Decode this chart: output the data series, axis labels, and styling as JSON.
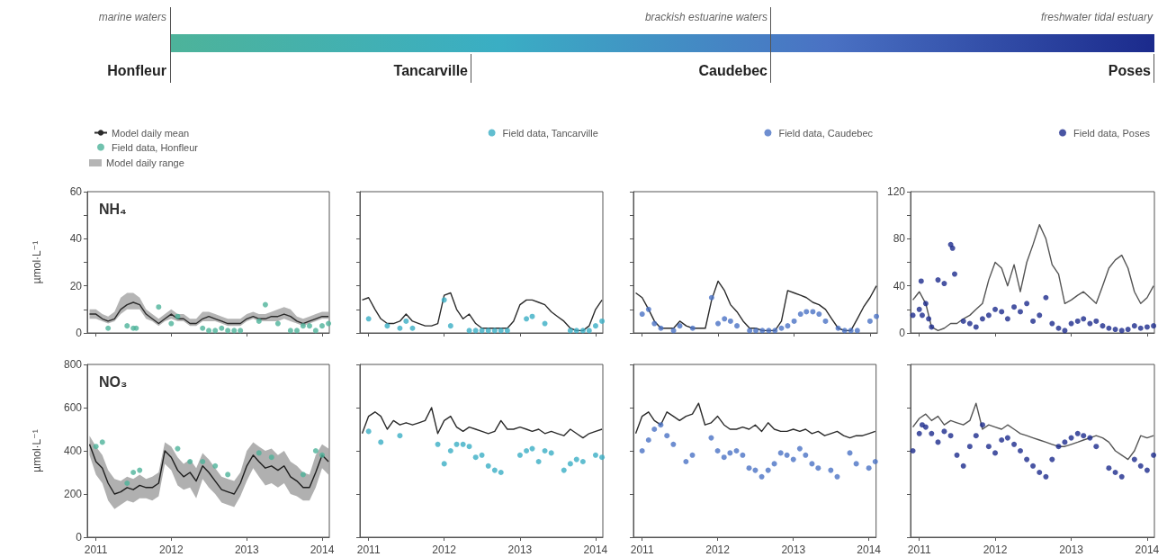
{
  "chart_data": [
    {
      "type": "other",
      "annotations": [
        "marine waters",
        "brackish estuarine waters",
        "freshwater tidal estuary",
        "Honfleur",
        "Tancarville",
        "Caudebec",
        "Poses"
      ]
    },
    {
      "type": "line",
      "title": "NH₄",
      "annotations": [
        "Model daily range"
      ],
      "ylabel": "µmol·L⁻¹",
      "legend": "top left",
      "tick_labels": "y",
      "marker": "circle",
      "line_style": "solid",
      "grid": false,
      "x": [
        "2010-12",
        "2011-01",
        "2011-02",
        "2011-03",
        "2011-04",
        "2011-05",
        "2011-06",
        "2011-07",
        "2011-08",
        "2011-09",
        "2011-10",
        "2011-11",
        "2011-12",
        "2012-01",
        "2012-02",
        "2012-03",
        "2012-04",
        "2012-05",
        "2012-06",
        "2012-07",
        "2012-08",
        "2012-09",
        "2012-10",
        "2012-11",
        "2012-12",
        "2013-01",
        "2013-02",
        "2013-03",
        "2013-04",
        "2013-05",
        "2013-06",
        "2013-07",
        "2013-08",
        "2013-09",
        "2013-10",
        "2013-11",
        "2013-12",
        "2014-01",
        "2014-02"
      ],
      "xlim": [
        "2010-11-20",
        "2014-02-05"
      ],
      "xticks": [
        "2011",
        "2012",
        "2013",
        "2014"
      ],
      "ylim": [
        0,
        60
      ],
      "yticks": [
        0,
        {
          "value": 10,
          "label": null
        },
        20,
        {
          "value": 30,
          "label": null
        },
        40,
        {
          "value": 50,
          "label": null
        },
        60
      ],
      "series": [
        {
          "name": "Model daily mean",
          "type": "line",
          "marker": "none",
          "color": "#2b2b2b",
          "values": [
            8,
            8,
            6,
            5,
            6,
            10,
            12,
            13,
            12,
            8,
            6,
            4,
            6,
            8,
            6,
            6,
            4,
            4,
            6,
            7,
            6,
            5,
            4,
            4,
            4,
            6,
            7,
            6,
            6,
            7,
            7,
            8,
            7,
            5,
            4,
            5,
            6,
            7,
            7
          ],
          "upper": [
            10,
            10,
            8,
            7,
            9,
            15,
            17,
            17,
            15,
            10,
            8,
            6,
            8,
            10,
            8,
            8,
            6,
            6,
            9,
            9,
            8,
            7,
            6,
            6,
            6,
            8,
            9,
            8,
            8,
            9,
            10,
            11,
            10,
            7,
            6,
            7,
            8,
            9,
            9
          ],
          "lower": [
            6,
            6,
            5,
            4,
            5,
            8,
            10,
            10,
            10,
            6,
            5,
            3,
            5,
            6,
            5,
            5,
            3,
            3,
            5,
            5,
            5,
            4,
            3,
            3,
            3,
            5,
            6,
            5,
            5,
            5,
            5,
            6,
            5,
            4,
            3,
            4,
            5,
            6,
            6
          ]
        },
        {
          "name": "Field data, Honfleur",
          "type": "scatter",
          "color": "#4db39a",
          "x": [
            "2011-03",
            "2011-06",
            "2011-07",
            "2011-07-15",
            "2011-11",
            "2012-01",
            "2012-02",
            "2012-06",
            "2012-07",
            "2012-08",
            "2012-09",
            "2012-10",
            "2012-11",
            "2012-12",
            "2013-03",
            "2013-04",
            "2013-06",
            "2013-08",
            "2013-09",
            "2013-10",
            "2013-11",
            "2013-12",
            "2014-01",
            "2014-02"
          ],
          "values": [
            2,
            3,
            2,
            2,
            11,
            4,
            7,
            2,
            1,
            1,
            2,
            1,
            1,
            1,
            5,
            12,
            4,
            1,
            1,
            3,
            3,
            1,
            3,
            4
          ]
        }
      ]
    },
    {
      "type": "line",
      "legend": "top right",
      "tick_labels": false,
      "marker": "circle",
      "line_style": "solid",
      "grid": false,
      "x": [
        "2010-12",
        "2011-01",
        "2011-02",
        "2011-03",
        "2011-04",
        "2011-05",
        "2011-06",
        "2011-07",
        "2011-08",
        "2011-09",
        "2011-10",
        "2011-11",
        "2011-12",
        "2012-01",
        "2012-02",
        "2012-03",
        "2012-04",
        "2012-05",
        "2012-06",
        "2012-07",
        "2012-08",
        "2012-09",
        "2012-10",
        "2012-11",
        "2012-12",
        "2013-01",
        "2013-02",
        "2013-03",
        "2013-04",
        "2013-05",
        "2013-06",
        "2013-07",
        "2013-08",
        "2013-09",
        "2013-10",
        "2013-11",
        "2013-12",
        "2014-01",
        "2014-02"
      ],
      "xlim": [
        "2010-11-20",
        "2014-02-05"
      ],
      "xticks": [
        "2011",
        "2012",
        "2013",
        "2014"
      ],
      "ylim": [
        0,
        60
      ],
      "yticks": [
        0,
        {
          "value": 10,
          "label": null
        },
        20,
        {
          "value": 30,
          "label": null
        },
        40,
        {
          "value": 50,
          "label": null
        },
        60
      ],
      "series": [
        {
          "type": "line",
          "marker": "none",
          "color": "#2b2b2b",
          "values": [
            14,
            15,
            10,
            6,
            4,
            4,
            5,
            8,
            5,
            4,
            3,
            3,
            4,
            16,
            17,
            10,
            6,
            8,
            4,
            2,
            2,
            2,
            2,
            2,
            5,
            12,
            14,
            14,
            13,
            12,
            9,
            7,
            5,
            2,
            1,
            1,
            3,
            10,
            14
          ]
        },
        {
          "name": "Field data, Tancarville",
          "type": "scatter",
          "color": "#3aaec4",
          "x": [
            "2011-01",
            "2011-04",
            "2011-06",
            "2011-07",
            "2011-08",
            "2012-01",
            "2012-02",
            "2012-05",
            "2012-06",
            "2012-07",
            "2012-08",
            "2012-09",
            "2012-10",
            "2012-11",
            "2013-02",
            "2013-03",
            "2013-05",
            "2013-09",
            "2013-10",
            "2013-11",
            "2013-12",
            "2014-01",
            "2014-02"
          ],
          "values": [
            6,
            3,
            2,
            5,
            2,
            14,
            3,
            1,
            1,
            1,
            1,
            1,
            1,
            1,
            6,
            7,
            4,
            1,
            1,
            1,
            1,
            3,
            5
          ]
        }
      ]
    },
    {
      "type": "line",
      "legend": "top right",
      "tick_labels": false,
      "marker": "circle",
      "line_style": "solid",
      "grid": false,
      "x": [
        "2010-12",
        "2011-01",
        "2011-02",
        "2011-03",
        "2011-04",
        "2011-05",
        "2011-06",
        "2011-07",
        "2011-08",
        "2011-09",
        "2011-10",
        "2011-11",
        "2011-12",
        "2012-01",
        "2012-02",
        "2012-03",
        "2012-04",
        "2012-05",
        "2012-06",
        "2012-07",
        "2012-08",
        "2012-09",
        "2012-10",
        "2012-11",
        "2012-12",
        "2013-01",
        "2013-02",
        "2013-03",
        "2013-04",
        "2013-05",
        "2013-06",
        "2013-07",
        "2013-08",
        "2013-09",
        "2013-10",
        "2013-11",
        "2013-12",
        "2014-01",
        "2014-02"
      ],
      "xlim": [
        "2010-11-20",
        "2014-02-05"
      ],
      "xticks": [
        "2011",
        "2012",
        "2013",
        "2014"
      ],
      "ylim": [
        0,
        60
      ],
      "yticks": [
        0,
        {
          "value": 10,
          "label": null
        },
        20,
        {
          "value": 30,
          "label": null
        },
        40,
        {
          "value": 50,
          "label": null
        },
        60
      ],
      "series": [
        {
          "type": "line",
          "marker": "none",
          "color": "#2b2b2b",
          "values": [
            17,
            15,
            10,
            5,
            2,
            2,
            2,
            5,
            3,
            2,
            2,
            2,
            14,
            22,
            18,
            12,
            9,
            5,
            2,
            2,
            1,
            1,
            1,
            5,
            18,
            17,
            16,
            15,
            13,
            12,
            10,
            6,
            2,
            1,
            1,
            6,
            11,
            15,
            20
          ]
        },
        {
          "name": "Field data, Caudebec",
          "type": "scatter",
          "color": "#4a72c4",
          "x": [
            "2011-01",
            "2011-02",
            "2011-03",
            "2011-04",
            "2011-06",
            "2011-07",
            "2011-09",
            "2011-12",
            "2012-01",
            "2012-02",
            "2012-03",
            "2012-04",
            "2012-06",
            "2012-07",
            "2012-08",
            "2012-09",
            "2012-10",
            "2012-11",
            "2012-12",
            "2013-01",
            "2013-02",
            "2013-03",
            "2013-04",
            "2013-05",
            "2013-06",
            "2013-08",
            "2013-09",
            "2013-10",
            "2013-11",
            "2014-01",
            "2014-02"
          ],
          "values": [
            8,
            10,
            4,
            2,
            1,
            3,
            2,
            15,
            4,
            6,
            5,
            3,
            1,
            1,
            1,
            1,
            1,
            2,
            3,
            5,
            8,
            9,
            9,
            8,
            5,
            2,
            1,
            1,
            1,
            5,
            7
          ]
        }
      ]
    },
    {
      "type": "line",
      "legend": "top right",
      "tick_labels": "y",
      "marker": "circle",
      "line_style": "solid",
      "grid": false,
      "x": [
        "2010-12",
        "2011-01",
        "2011-02",
        "2011-03",
        "2011-04",
        "2011-05",
        "2011-06",
        "2011-07",
        "2011-08",
        "2011-09",
        "2011-10",
        "2011-11",
        "2011-12",
        "2012-01",
        "2012-02",
        "2012-03",
        "2012-04",
        "2012-05",
        "2012-06",
        "2012-07",
        "2012-08",
        "2012-09",
        "2012-10",
        "2012-11",
        "2012-12",
        "2013-01",
        "2013-02",
        "2013-03",
        "2013-04",
        "2013-05",
        "2013-06",
        "2013-07",
        "2013-08",
        "2013-09",
        "2013-10",
        "2013-11",
        "2013-12",
        "2014-01",
        "2014-02"
      ],
      "xlim": [
        "2010-11-20",
        "2014-02-05"
      ],
      "xticks": [
        "2011",
        "2012",
        "2013",
        "2014"
      ],
      "ylim": [
        0,
        120
      ],
      "yticks": [
        0,
        {
          "value": 20,
          "label": null
        },
        40,
        {
          "value": 60,
          "label": null
        },
        80,
        {
          "value": 100,
          "label": null
        },
        120
      ],
      "series": [
        {
          "type": "line",
          "marker": "none",
          "color": "#555555",
          "values": [
            28,
            35,
            25,
            5,
            2,
            4,
            8,
            8,
            12,
            15,
            20,
            25,
            45,
            60,
            55,
            40,
            58,
            35,
            60,
            75,
            92,
            80,
            58,
            50,
            25,
            28,
            32,
            35,
            30,
            25,
            40,
            55,
            62,
            66,
            55,
            35,
            25,
            30,
            40
          ]
        },
        {
          "name": "Field data, Poses",
          "type": "scatter",
          "color": "#1b2a8c",
          "x": [
            "2010-12",
            "2011-01",
            "2011-01-10",
            "2011-01-15",
            "2011-02",
            "2011-02-15",
            "2011-03",
            "2011-04",
            "2011-05",
            "2011-06",
            "2011-06-10",
            "2011-06-20",
            "2011-08",
            "2011-09",
            "2011-10",
            "2011-11",
            "2011-12",
            "2012-01",
            "2012-02",
            "2012-03",
            "2012-04",
            "2012-05",
            "2012-06",
            "2012-07",
            "2012-08",
            "2012-09",
            "2012-10",
            "2012-11",
            "2012-12",
            "2013-01",
            "2013-02",
            "2013-03",
            "2013-04",
            "2013-05",
            "2013-06",
            "2013-07",
            "2013-08",
            "2013-09",
            "2013-10",
            "2013-11",
            "2013-12",
            "2014-01",
            "2014-02"
          ],
          "values": [
            15,
            20,
            44,
            15,
            25,
            12,
            5,
            45,
            42,
            75,
            72,
            50,
            10,
            8,
            5,
            12,
            15,
            20,
            18,
            12,
            22,
            18,
            25,
            10,
            15,
            30,
            8,
            4,
            2,
            8,
            10,
            12,
            8,
            10,
            6,
            4,
            3,
            2,
            3,
            6,
            4,
            5,
            6
          ]
        }
      ]
    },
    {
      "type": "line",
      "title": "NO₃",
      "ylabel": "µmol·L⁻¹",
      "marker": "circle",
      "line_style": "solid",
      "grid": false,
      "x": [
        "2010-12",
        "2011-01",
        "2011-02",
        "2011-03",
        "2011-04",
        "2011-05",
        "2011-06",
        "2011-07",
        "2011-08",
        "2011-09",
        "2011-10",
        "2011-11",
        "2011-12",
        "2012-01",
        "2012-02",
        "2012-03",
        "2012-04",
        "2012-05",
        "2012-06",
        "2012-07",
        "2012-08",
        "2012-09",
        "2012-10",
        "2012-11",
        "2012-12",
        "2013-01",
        "2013-02",
        "2013-03",
        "2013-04",
        "2013-05",
        "2013-06",
        "2013-07",
        "2013-08",
        "2013-09",
        "2013-10",
        "2013-11",
        "2013-12",
        "2014-01",
        "2014-02"
      ],
      "xlim": [
        "2010-11-20",
        "2014-02-05"
      ],
      "xticks": [
        "2011",
        "2012",
        "2013",
        "2014"
      ],
      "ylim": [
        0,
        800
      ],
      "yticks": [
        0,
        200,
        400,
        600,
        800
      ],
      "series": [
        {
          "type": "line",
          "marker": "none",
          "color": "#1e1e1e",
          "values": [
            430,
            350,
            320,
            250,
            200,
            210,
            230,
            220,
            240,
            230,
            230,
            250,
            400,
            370,
            310,
            280,
            300,
            260,
            330,
            300,
            260,
            220,
            210,
            200,
            250,
            330,
            380,
            350,
            320,
            330,
            310,
            330,
            280,
            260,
            230,
            230,
            300,
            380,
            350
          ],
          "upper": [
            470,
            420,
            380,
            310,
            270,
            260,
            280,
            270,
            290,
            270,
            280,
            300,
            440,
            420,
            370,
            340,
            360,
            320,
            390,
            360,
            320,
            280,
            270,
            260,
            300,
            400,
            440,
            420,
            400,
            410,
            380,
            400,
            350,
            330,
            300,
            290,
            380,
            430,
            410
          ],
          "lower": [
            380,
            290,
            250,
            170,
            130,
            150,
            170,
            160,
            180,
            180,
            170,
            190,
            340,
            310,
            240,
            220,
            230,
            180,
            270,
            230,
            200,
            160,
            150,
            140,
            190,
            260,
            320,
            280,
            240,
            250,
            230,
            250,
            200,
            190,
            170,
            170,
            230,
            320,
            290
          ]
        },
        {
          "type": "scatter",
          "color": "#4db39a",
          "x": [
            "2011-01",
            "2011-02",
            "2011-06",
            "2011-07",
            "2011-08",
            "2012-02",
            "2012-04",
            "2012-06",
            "2012-08",
            "2012-10",
            "2013-03",
            "2013-05",
            "2013-10",
            "2013-12",
            "2014-01"
          ],
          "values": [
            420,
            440,
            250,
            300,
            310,
            410,
            350,
            350,
            330,
            290,
            390,
            370,
            290,
            400,
            380
          ]
        }
      ]
    },
    {
      "type": "line",
      "tick_labels": "x",
      "marker": "circle",
      "line_style": "solid",
      "grid": false,
      "x": [
        "2010-12",
        "2011-01",
        "2011-02",
        "2011-03",
        "2011-04",
        "2011-05",
        "2011-06",
        "2011-07",
        "2011-08",
        "2011-09",
        "2011-10",
        "2011-11",
        "2011-12",
        "2012-01",
        "2012-02",
        "2012-03",
        "2012-04",
        "2012-05",
        "2012-06",
        "2012-07",
        "2012-08",
        "2012-09",
        "2012-10",
        "2012-11",
        "2012-12",
        "2013-01",
        "2013-02",
        "2013-03",
        "2013-04",
        "2013-05",
        "2013-06",
        "2013-07",
        "2013-08",
        "2013-09",
        "2013-10",
        "2013-11",
        "2013-12",
        "2014-01",
        "2014-02"
      ],
      "xlim": [
        "2010-11-20",
        "2014-02-05"
      ],
      "xticks": [
        "2011",
        "2012",
        "2013",
        "2014"
      ],
      "ylim": [
        0,
        800
      ],
      "yticks": [
        0,
        200,
        400,
        600,
        800
      ],
      "series": [
        {
          "type": "line",
          "marker": "none",
          "color": "#2b2b2b",
          "values": [
            480,
            560,
            580,
            560,
            500,
            540,
            520,
            530,
            520,
            530,
            540,
            600,
            480,
            540,
            560,
            510,
            490,
            510,
            500,
            490,
            480,
            490,
            540,
            500,
            500,
            510,
            500,
            490,
            500,
            480,
            490,
            480,
            470,
            500,
            480,
            460,
            480,
            490,
            500
          ]
        },
        {
          "type": "scatter",
          "color": "#3aaec4",
          "x": [
            "2011-01",
            "2011-03",
            "2011-06",
            "2011-12",
            "2012-01",
            "2012-02",
            "2012-03",
            "2012-04",
            "2012-05",
            "2012-06",
            "2012-07",
            "2012-08",
            "2012-09",
            "2012-10",
            "2013-01",
            "2013-02",
            "2013-03",
            "2013-04",
            "2013-05",
            "2013-06",
            "2013-08",
            "2013-09",
            "2013-10",
            "2013-11",
            "2014-01",
            "2014-02"
          ],
          "values": [
            490,
            440,
            470,
            430,
            340,
            400,
            430,
            430,
            420,
            370,
            380,
            330,
            310,
            300,
            380,
            400,
            410,
            350,
            400,
            390,
            310,
            340,
            360,
            350,
            380,
            370
          ]
        }
      ]
    },
    {
      "type": "line",
      "tick_labels": "x",
      "marker": "circle",
      "line_style": "solid",
      "grid": false,
      "x": [
        "2010-12",
        "2011-01",
        "2011-02",
        "2011-03",
        "2011-04",
        "2011-05",
        "2011-06",
        "2011-07",
        "2011-08",
        "2011-09",
        "2011-10",
        "2011-11",
        "2011-12",
        "2012-01",
        "2012-02",
        "2012-03",
        "2012-04",
        "2012-05",
        "2012-06",
        "2012-07",
        "2012-08",
        "2012-09",
        "2012-10",
        "2012-11",
        "2012-12",
        "2013-01",
        "2013-02",
        "2013-03",
        "2013-04",
        "2013-05",
        "2013-06",
        "2013-07",
        "2013-08",
        "2013-09",
        "2013-10",
        "2013-11",
        "2013-12",
        "2014-01",
        "2014-02"
      ],
      "xlim": [
        "2010-11-20",
        "2014-02-05"
      ],
      "xticks": [
        "2011",
        "2012",
        "2013",
        "2014"
      ],
      "ylim": [
        0,
        800
      ],
      "yticks": [
        0,
        200,
        400,
        600,
        800
      ],
      "series": [
        {
          "type": "line",
          "marker": "none",
          "color": "#2b2b2b",
          "values": [
            480,
            560,
            580,
            540,
            520,
            580,
            560,
            540,
            560,
            570,
            620,
            520,
            530,
            560,
            520,
            500,
            500,
            510,
            500,
            520,
            490,
            530,
            500,
            490,
            490,
            500,
            490,
            500,
            480,
            490,
            470,
            480,
            490,
            470,
            460,
            470,
            470,
            480,
            490
          ]
        },
        {
          "type": "scatter",
          "color": "#4a72c4",
          "x": [
            "2011-01",
            "2011-02",
            "2011-03",
            "2011-04",
            "2011-05",
            "2011-06",
            "2011-08",
            "2011-09",
            "2011-12",
            "2012-01",
            "2012-02",
            "2012-03",
            "2012-04",
            "2012-05",
            "2012-06",
            "2012-07",
            "2012-08",
            "2012-09",
            "2012-10",
            "2012-11",
            "2012-12",
            "2013-01",
            "2013-02",
            "2013-03",
            "2013-04",
            "2013-05",
            "2013-07",
            "2013-08",
            "2013-10",
            "2013-11",
            "2014-01",
            "2014-02"
          ],
          "values": [
            400,
            450,
            500,
            520,
            470,
            430,
            350,
            380,
            460,
            400,
            370,
            390,
            400,
            380,
            320,
            310,
            280,
            310,
            340,
            390,
            380,
            360,
            410,
            380,
            340,
            320,
            310,
            280,
            390,
            340,
            320,
            350
          ]
        }
      ]
    },
    {
      "type": "line",
      "tick_labels": "x",
      "marker": "circle",
      "line_style": "solid",
      "grid": false,
      "x": [
        "2010-12",
        "2011-01",
        "2011-02",
        "2011-03",
        "2011-04",
        "2011-05",
        "2011-06",
        "2011-07",
        "2011-08",
        "2011-09",
        "2011-10",
        "2011-11",
        "2011-12",
        "2012-01",
        "2012-02",
        "2012-03",
        "2012-04",
        "2012-05",
        "2012-06",
        "2012-07",
        "2012-08",
        "2012-09",
        "2012-10",
        "2012-11",
        "2012-12",
        "2013-01",
        "2013-02",
        "2013-03",
        "2013-04",
        "2013-05",
        "2013-06",
        "2013-07",
        "2013-08",
        "2013-09",
        "2013-10",
        "2013-11",
        "2013-12",
        "2014-01",
        "2014-02"
      ],
      "xlim": [
        "2010-11-20",
        "2014-02-05"
      ],
      "xticks": [
        "2011",
        "2012",
        "2013",
        "2014"
      ],
      "ylim": [
        0,
        800
      ],
      "yticks": [
        0,
        200,
        400,
        600,
        800
      ],
      "series": [
        {
          "type": "line",
          "marker": "none",
          "color": "#555555",
          "values": [
            510,
            550,
            570,
            540,
            560,
            520,
            540,
            530,
            520,
            540,
            620,
            500,
            520,
            510,
            500,
            520,
            500,
            480,
            470,
            460,
            450,
            440,
            430,
            420,
            420,
            430,
            440,
            450,
            460,
            470,
            460,
            440,
            400,
            380,
            360,
            400,
            470,
            460,
            470
          ]
        },
        {
          "type": "scatter",
          "color": "#1b2a8c",
          "x": [
            "2010-12",
            "2011-01",
            "2011-01-15",
            "2011-02",
            "2011-03",
            "2011-04",
            "2011-05",
            "2011-06",
            "2011-07",
            "2011-08",
            "2011-09",
            "2011-10",
            "2011-11",
            "2011-12",
            "2012-01",
            "2012-02",
            "2012-03",
            "2012-04",
            "2012-05",
            "2012-06",
            "2012-07",
            "2012-08",
            "2012-09",
            "2012-10",
            "2012-11",
            "2012-12",
            "2013-01",
            "2013-02",
            "2013-03",
            "2013-04",
            "2013-05",
            "2013-07",
            "2013-08",
            "2013-09",
            "2013-11",
            "2013-12",
            "2014-01",
            "2014-02"
          ],
          "values": [
            400,
            480,
            520,
            510,
            480,
            440,
            490,
            470,
            380,
            330,
            420,
            470,
            520,
            420,
            390,
            450,
            460,
            430,
            400,
            360,
            330,
            300,
            280,
            360,
            420,
            440,
            460,
            480,
            470,
            460,
            420,
            320,
            300,
            280,
            360,
            330,
            310,
            380
          ]
        }
      ]
    }
  ]
}
